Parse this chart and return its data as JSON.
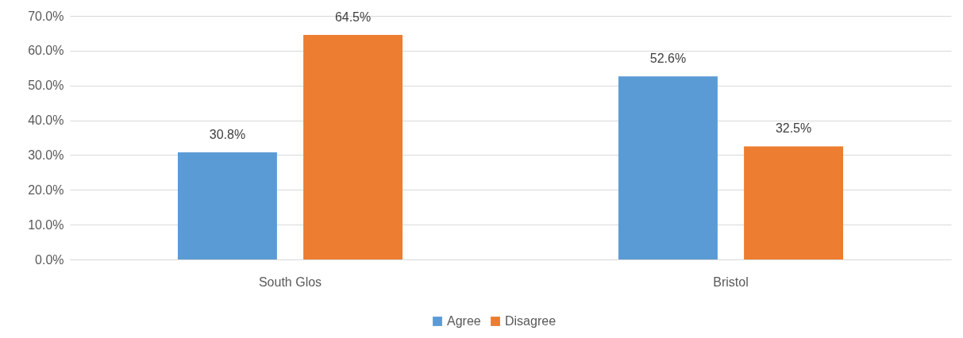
{
  "chart_data": {
    "type": "bar",
    "categories": [
      "South Glos",
      "Bristol"
    ],
    "series": [
      {
        "name": "Agree",
        "color": "#5b9bd5",
        "values": [
          30.8,
          52.6
        ],
        "value_labels": [
          "30.8%",
          "52.6%"
        ]
      },
      {
        "name": "Disagree",
        "color": "#ed7d31",
        "values": [
          64.5,
          32.5
        ],
        "value_labels": [
          "64.5%",
          "32.5%"
        ]
      }
    ],
    "ylim": [
      0,
      70
    ],
    "yticks": [
      {
        "value": 0,
        "label": "0.0%"
      },
      {
        "value": 10,
        "label": "10.0%"
      },
      {
        "value": 20,
        "label": "20.0%"
      },
      {
        "value": 30,
        "label": "30.0%"
      },
      {
        "value": 40,
        "label": "40.0%"
      },
      {
        "value": 50,
        "label": "50.0%"
      },
      {
        "value": 60,
        "label": "60.0%"
      },
      {
        "value": 70,
        "label": "70.0%"
      }
    ],
    "grid": "y",
    "legend": "bottom"
  }
}
